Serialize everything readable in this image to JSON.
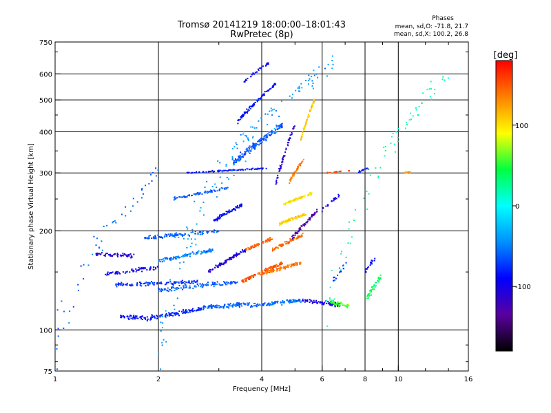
{
  "chart_data": {
    "type": "scatter",
    "title": "Tromsø 20141219 18:00:00–18:01:43",
    "subtitle": "RwPretec (8p)",
    "xlabel": "Frequency [MHz]",
    "ylabel": "Stationary phase Virtual Height [km]",
    "x_scale": "log",
    "y_scale": "log",
    "xlim": [
      1,
      16
    ],
    "ylim": [
      75,
      750
    ],
    "x_ticks": [
      1,
      2,
      4,
      6,
      8,
      10,
      16
    ],
    "x_tick_labels": [
      "1",
      "2",
      "4",
      "6",
      "8",
      "10",
      "16"
    ],
    "x_gridlines": [
      2,
      4,
      6,
      8,
      10
    ],
    "y_ticks": [
      75,
      100,
      200,
      300,
      400,
      500,
      600,
      750
    ],
    "y_tick_labels": [
      "75",
      "100",
      "200",
      "300",
      "400",
      "500",
      "600",
      "750"
    ],
    "y_gridlines": [
      100,
      200,
      300,
      400,
      500,
      600
    ],
    "grid": true,
    "stats": {
      "title": "Phases",
      "line_o": "mean, sd,O: -71.8, 21.7",
      "line_x": "mean, sd,X: 100.2, 26.8"
    },
    "colorbar": {
      "label": "[deg]",
      "range": [
        -180,
        180
      ],
      "ticks": [
        100,
        0,
        -100
      ],
      "tick_labels": [
        "100",
        "0",
        "-100"
      ],
      "colors": [
        "#000000",
        "#5a00a0",
        "#0000ff",
        "#0090ff",
        "#00ffff",
        "#00ff40",
        "#ffff00",
        "#ff8000",
        "#ff0000"
      ]
    },
    "clusters": [
      {
        "x": [
          1.55,
          1.9
        ],
        "h": [
          110,
          108
        ],
        "n": 55,
        "spread": 2.5,
        "phase": -90
      },
      {
        "x": [
          1.9,
          2.7
        ],
        "h": [
          109,
          116
        ],
        "n": 110,
        "spread": 2.5,
        "phase": -80
      },
      {
        "x": [
          2.7,
          3.7
        ],
        "h": [
          117,
          120
        ],
        "n": 110,
        "spread": 2.5,
        "phase": -60
      },
      {
        "x": [
          3.7,
          5.2
        ],
        "h": [
          118,
          123
        ],
        "n": 110,
        "spread": 2.5,
        "phase": -55
      },
      {
        "x": [
          5.2,
          6.8
        ],
        "h": [
          123,
          119
        ],
        "n": 70,
        "spread": 2.5,
        "phase": -100
      },
      {
        "x": [
          1.3,
          1.7
        ],
        "h": [
          170,
          168
        ],
        "n": 60,
        "spread": 3,
        "phase": -110
      },
      {
        "x": [
          1.4,
          2.0
        ],
        "h": [
          148,
          155
        ],
        "n": 70,
        "spread": 3,
        "phase": -95
      },
      {
        "x": [
          1.5,
          2.6
        ],
        "h": [
          137,
          140
        ],
        "n": 120,
        "spread": 3,
        "phase": -75
      },
      {
        "x": [
          2.0,
          3.4
        ],
        "h": [
          132,
          140
        ],
        "n": 110,
        "spread": 3,
        "phase": -60
      },
      {
        "x": [
          2.0,
          2.9
        ],
        "h": [
          162,
          175
        ],
        "n": 110,
        "spread": 3,
        "phase": -50
      },
      {
        "x": [
          1.8,
          3.0
        ],
        "h": [
          190,
          200
        ],
        "n": 110,
        "spread": 3.5,
        "phase": -60
      },
      {
        "x": [
          2.8,
          3.6
        ],
        "h": [
          150,
          175
        ],
        "n": 100,
        "spread": 3,
        "phase": -105
      },
      {
        "x": [
          2.9,
          3.5
        ],
        "h": [
          215,
          240
        ],
        "n": 80,
        "spread": 4,
        "phase": -90
      },
      {
        "x": [
          3.5,
          4.6
        ],
        "h": [
          140,
          160
        ],
        "n": 110,
        "spread": 2.5,
        "phase": 150
      },
      {
        "x": [
          3.6,
          4.3
        ],
        "h": [
          175,
          190
        ],
        "n": 70,
        "spread": 3,
        "phase": 145
      },
      {
        "x": [
          4.0,
          5.2
        ],
        "h": [
          148,
          160
        ],
        "n": 110,
        "spread": 2.5,
        "phase": 140
      },
      {
        "x": [
          4.3,
          5.3
        ],
        "h": [
          175,
          195
        ],
        "n": 80,
        "spread": 3,
        "phase": 145
      },
      {
        "x": [
          4.5,
          5.4
        ],
        "h": [
          210,
          225
        ],
        "n": 90,
        "spread": 3,
        "phase": 110
      },
      {
        "x": [
          4.6,
          5.6
        ],
        "h": [
          240,
          260
        ],
        "n": 90,
        "spread": 3,
        "phase": 100
      },
      {
        "x": [
          4.9,
          5.8
        ],
        "h": [
          190,
          230
        ],
        "n": 70,
        "spread": 4,
        "phase": -130
      },
      {
        "x": [
          5.2,
          5.7
        ],
        "h": [
          380,
          500
        ],
        "n": 70,
        "spread": 8,
        "phase": 110
      },
      {
        "x": [
          4.8,
          5.3
        ],
        "h": [
          280,
          330
        ],
        "n": 50,
        "spread": 5,
        "phase": 140
      },
      {
        "x": [
          2.4,
          4.2
        ],
        "h": [
          300,
          310
        ],
        "n": 90,
        "spread": 2,
        "phase": -85
      },
      {
        "x": [
          2.2,
          3.2
        ],
        "h": [
          250,
          270
        ],
        "n": 70,
        "spread": 4,
        "phase": -60
      },
      {
        "x": [
          3.3,
          4.6
        ],
        "h": [
          320,
          420
        ],
        "n": 160,
        "spread": 12,
        "phase": -65
      },
      {
        "x": [
          3.4,
          4.4
        ],
        "h": [
          430,
          560
        ],
        "n": 90,
        "spread": 10,
        "phase": -85
      },
      {
        "x": [
          3.5,
          4.2
        ],
        "h": [
          560,
          650
        ],
        "n": 35,
        "spread": 8,
        "phase": -90
      },
      {
        "x": [
          4.4,
          5.0
        ],
        "h": [
          280,
          420
        ],
        "n": 60,
        "spread": 10,
        "phase": -110
      },
      {
        "x": [
          6.3,
          7.2
        ],
        "h": [
          122,
          118
        ],
        "n": 40,
        "spread": 3,
        "phase": 60
      },
      {
        "x": [
          8.1,
          8.9
        ],
        "h": [
          125,
          145
        ],
        "n": 40,
        "spread": 5,
        "phase": 40
      },
      {
        "x": [
          8.0,
          8.8
        ],
        "h": [
          150,
          170
        ],
        "n": 20,
        "spread": 5,
        "phase": -90
      },
      {
        "x": [
          6.2,
          7.2
        ],
        "h": [
          300,
          305
        ],
        "n": 20,
        "spread": 2,
        "phase": 150
      },
      {
        "x": [
          7.5,
          8.2
        ],
        "h": [
          300,
          310
        ],
        "n": 14,
        "spread": 3,
        "phase": -80
      },
      {
        "x": [
          6.0,
          6.8
        ],
        "h": [
          230,
          260
        ],
        "n": 20,
        "spread": 5,
        "phase": -100
      },
      {
        "x": [
          6.4,
          7.1
        ],
        "h": [
          140,
          160
        ],
        "n": 18,
        "spread": 5,
        "phase": -70
      },
      {
        "x": [
          10.3,
          10.9
        ],
        "h": [
          300,
          302
        ],
        "n": 10,
        "spread": 2,
        "phase": 120
      },
      {
        "x": [
          1.0,
          2.0
        ],
        "h": [
          90,
          300
        ],
        "n": 50,
        "spread": 30,
        "phase": -60
      },
      {
        "x": [
          2.0,
          6.5
        ],
        "h": [
          90,
          650
        ],
        "n": 140,
        "spread": 60,
        "phase": -40
      },
      {
        "x": [
          6.0,
          14.0
        ],
        "h": [
          80,
          600
        ],
        "n": 70,
        "spread": 50,
        "phase": 20
      }
    ]
  }
}
